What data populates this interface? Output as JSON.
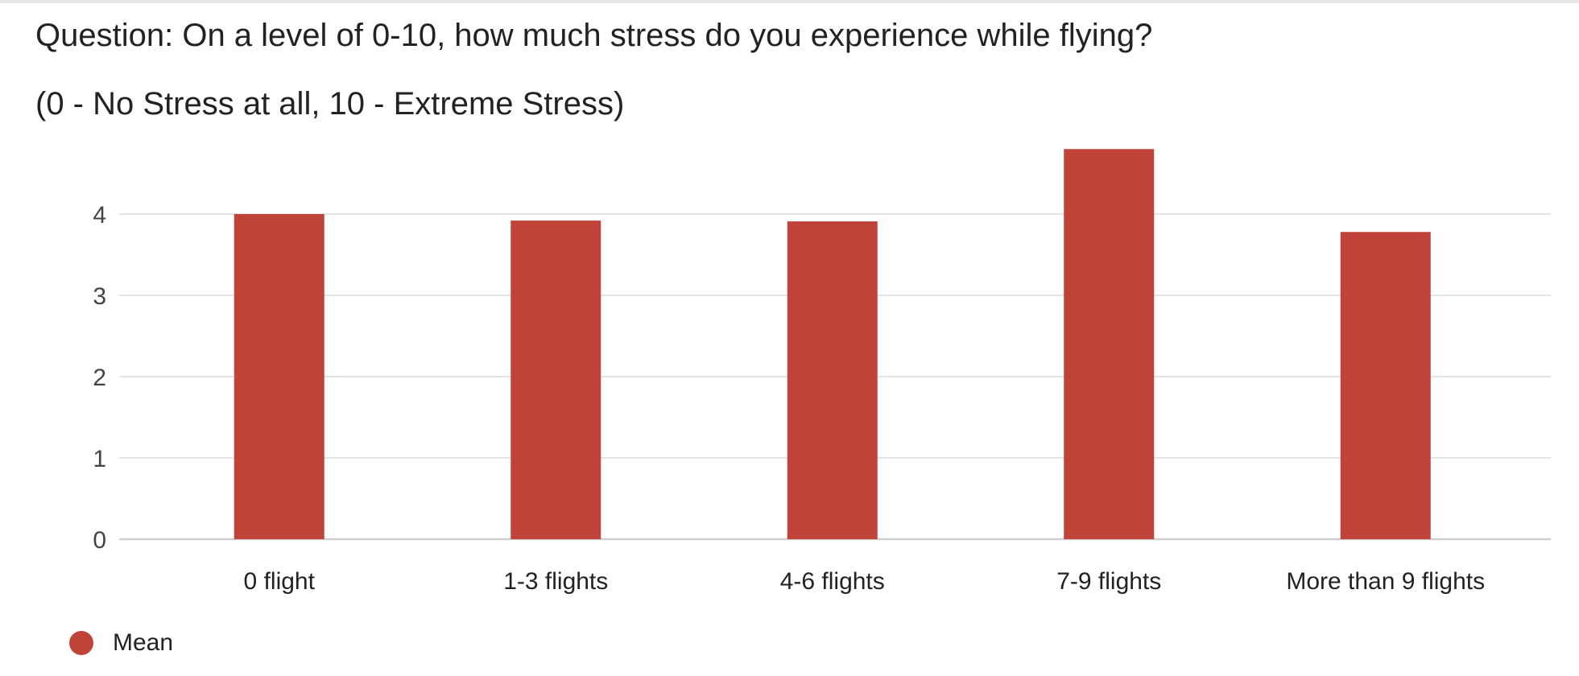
{
  "question": "Question: On a level of 0-10, how much stress do you experience while flying?",
  "subtitle": "(0 - No Stress at all, 10 - Extreme Stress)",
  "chart_data": {
    "type": "bar",
    "categories": [
      "0 flight",
      "1-3 flights",
      "4-6 flights",
      "7-9 flights",
      "More than 9 flights"
    ],
    "series": [
      {
        "name": "Mean",
        "values": [
          4.0,
          3.92,
          3.91,
          4.8,
          3.78
        ],
        "color": "#c0433a"
      }
    ],
    "yticks": [
      "0",
      "1",
      "2",
      "3",
      "4"
    ],
    "ylim": [
      0,
      4.8
    ],
    "grid": true,
    "legend_position": "bottom-left",
    "xlabel": "",
    "ylabel": ""
  }
}
